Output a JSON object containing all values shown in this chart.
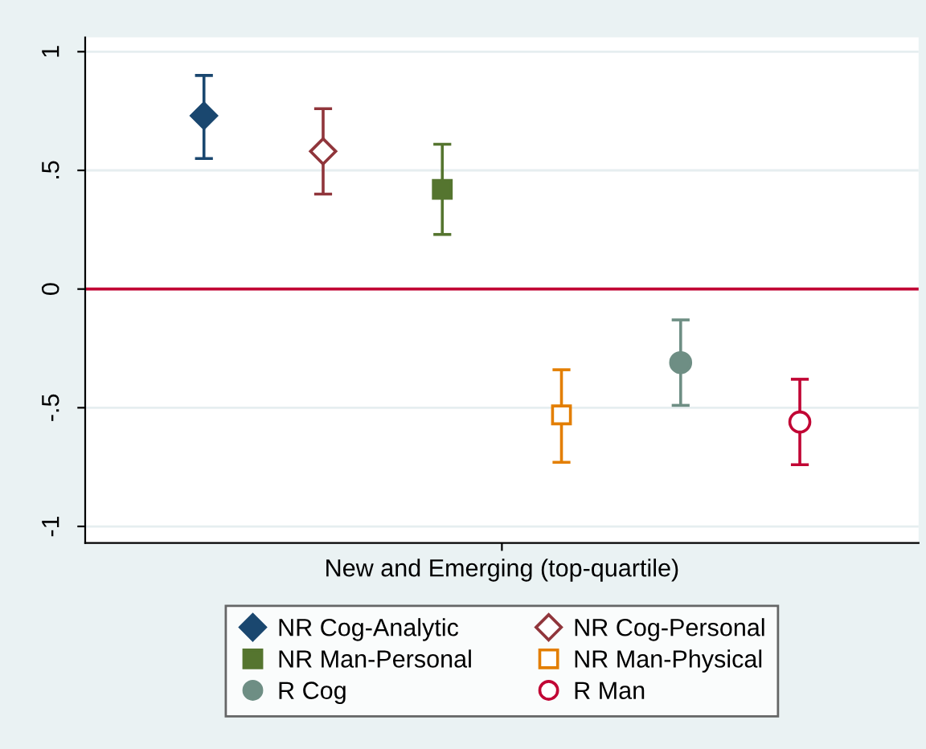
{
  "chart_data": {
    "type": "scatter",
    "categories": [
      "New and Emerging (top-quartile)"
    ],
    "series": [
      {
        "name": "NR Cog-Analytic",
        "color": "#1a476f",
        "marker": "diamond",
        "values": [
          0.73
        ],
        "errors": [
          [
            0.55,
            0.9
          ]
        ]
      },
      {
        "name": "NR Cog-Personal",
        "color": "#90353b",
        "marker": "diamond-open",
        "values": [
          0.58
        ],
        "errors": [
          [
            0.4,
            0.76
          ]
        ]
      },
      {
        "name": "NR Man-Personal",
        "color": "#55752f",
        "marker": "square",
        "values": [
          0.42
        ],
        "errors": [
          [
            0.23,
            0.61
          ]
        ]
      },
      {
        "name": "NR Man-Physical",
        "color": "#e37e00",
        "marker": "square-open",
        "values": [
          -0.53
        ],
        "errors": [
          [
            -0.73,
            -0.34
          ]
        ]
      },
      {
        "name": "R Cog",
        "color": "#6e8e84",
        "marker": "circle",
        "values": [
          -0.31
        ],
        "errors": [
          [
            -0.49,
            -0.13
          ]
        ]
      },
      {
        "name": "R Man",
        "color": "#c10534",
        "marker": "circle-open",
        "values": [
          -0.56
        ],
        "errors": [
          [
            -0.74,
            -0.38
          ]
        ]
      }
    ],
    "ylim": [
      -1.07,
      1.06
    ],
    "yticks": [
      {
        "value": -1,
        "label": "-1"
      },
      {
        "value": -0.5,
        "label": "-.5"
      },
      0,
      {
        "value": 0.5,
        "label": ".5"
      },
      1
    ],
    "ref_lines": [
      {
        "axis": "y",
        "value": 0,
        "color": "#c10534"
      }
    ],
    "grid": "y",
    "legend": "bottom"
  }
}
